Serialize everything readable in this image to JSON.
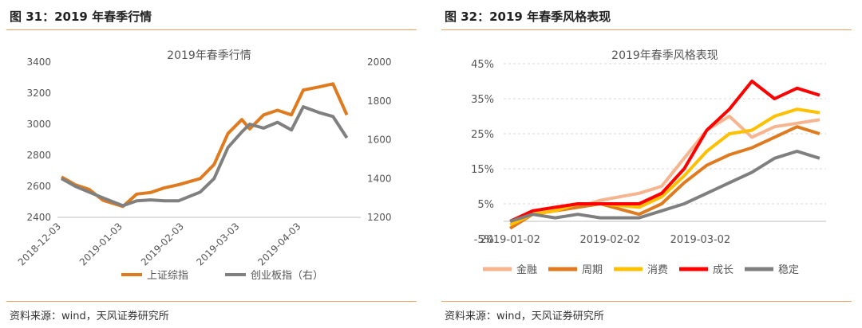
{
  "left_panel": {
    "figure_title": "图 31：2019 年春季行情",
    "source": "资料来源：wind，天风证券研究所"
  },
  "right_panel": {
    "figure_title": "图 32：2019 年春季风格表现",
    "source": "资料来源：wind，天风证券研究所"
  },
  "colors": {
    "shanghai": "#E07A1F",
    "chinext": "#808080",
    "jinrong": "#F6B48F",
    "zhouqi": "#E07A1F",
    "xiaofei": "#FFC000",
    "chengzhang": "#FF0000",
    "wending": "#7F7F7F",
    "rule": "#F0A060"
  },
  "chart_data": [
    {
      "type": "line",
      "title": "2019年春季行情",
      "x_ticks": [
        "2018-12-03",
        "2019-01-03",
        "2019-02-03",
        "2019-03-03",
        "2019-04-03"
      ],
      "y_left": {
        "range": [
          2400,
          3400
        ],
        "ticks": [
          2400,
          2600,
          2800,
          3000,
          3200,
          3400
        ]
      },
      "y_right": {
        "range": [
          1200,
          2000
        ],
        "ticks": [
          1200,
          1400,
          1600,
          1800,
          2000
        ]
      },
      "legend": [
        "上证综指",
        "创业板指（右）"
      ],
      "legend_position": "bottom",
      "series": [
        {
          "name": "上证综指",
          "axis": "left",
          "x": [
            "2018-12-03",
            "2018-12-10",
            "2018-12-17",
            "2018-12-24",
            "2019-01-03",
            "2019-01-10",
            "2019-01-17",
            "2019-01-24",
            "2019-01-31",
            "2019-02-11",
            "2019-02-18",
            "2019-02-25",
            "2019-03-04",
            "2019-03-08",
            "2019-03-15",
            "2019-03-22",
            "2019-03-29",
            "2019-04-04",
            "2019-04-12",
            "2019-04-19",
            "2019-04-26"
          ],
          "values": [
            2660,
            2610,
            2580,
            2510,
            2470,
            2550,
            2560,
            2590,
            2610,
            2650,
            2740,
            2940,
            3030,
            2970,
            3060,
            3090,
            3060,
            3220,
            3240,
            3260,
            3060
          ]
        },
        {
          "name": "创业板指（右）",
          "axis": "right",
          "x": [
            "2018-12-03",
            "2018-12-10",
            "2018-12-17",
            "2018-12-24",
            "2019-01-03",
            "2019-01-10",
            "2019-01-17",
            "2019-01-24",
            "2019-01-31",
            "2019-02-11",
            "2019-02-18",
            "2019-02-25",
            "2019-03-04",
            "2019-03-08",
            "2019-03-15",
            "2019-03-22",
            "2019-03-29",
            "2019-04-04",
            "2019-04-12",
            "2019-04-19",
            "2019-04-26"
          ],
          "values": [
            1400,
            1360,
            1330,
            1300,
            1260,
            1285,
            1290,
            1285,
            1285,
            1330,
            1400,
            1560,
            1640,
            1680,
            1660,
            1690,
            1650,
            1770,
            1740,
            1720,
            1610
          ]
        }
      ]
    },
    {
      "type": "line",
      "title": "2019年春季风格表现",
      "x_ticks": [
        "2019-01-02",
        "2019-02-02",
        "2019-03-02"
      ],
      "y": {
        "range": [
          -5,
          45
        ],
        "ticks": [
          "-5%",
          "5%",
          "15%",
          "25%",
          "35%",
          "45%"
        ]
      },
      "legend": [
        "金融",
        "周期",
        "消费",
        "成长",
        "稳定"
      ],
      "legend_position": "bottom",
      "series": [
        {
          "name": "金融",
          "x": [
            "2019-01-02",
            "2019-01-09",
            "2019-01-16",
            "2019-01-23",
            "2019-01-30",
            "2019-02-11",
            "2019-02-18",
            "2019-02-25",
            "2019-03-04",
            "2019-03-11",
            "2019-03-18",
            "2019-03-25",
            "2019-04-01",
            "2019-04-08"
          ],
          "values": [
            0,
            2,
            3,
            4,
            6,
            8,
            10,
            18,
            26,
            30,
            24,
            27,
            28,
            29
          ]
        },
        {
          "name": "周期",
          "x": [
            "2019-01-02",
            "2019-01-09",
            "2019-01-16",
            "2019-01-23",
            "2019-01-30",
            "2019-02-11",
            "2019-02-18",
            "2019-02-25",
            "2019-03-04",
            "2019-03-11",
            "2019-03-18",
            "2019-03-25",
            "2019-04-01",
            "2019-04-08"
          ],
          "values": [
            -2,
            2,
            3,
            4,
            5,
            2,
            5,
            11,
            16,
            19,
            21,
            24,
            27,
            25
          ]
        },
        {
          "name": "消费",
          "x": [
            "2019-01-02",
            "2019-01-09",
            "2019-01-16",
            "2019-01-23",
            "2019-01-30",
            "2019-02-11",
            "2019-02-18",
            "2019-02-25",
            "2019-03-04",
            "2019-03-11",
            "2019-03-18",
            "2019-03-25",
            "2019-04-01",
            "2019-04-08"
          ],
          "values": [
            -1,
            2,
            3,
            5,
            5,
            4,
            7,
            13,
            20,
            25,
            26,
            30,
            32,
            31
          ]
        },
        {
          "name": "成长",
          "x": [
            "2019-01-02",
            "2019-01-09",
            "2019-01-16",
            "2019-01-23",
            "2019-01-30",
            "2019-02-11",
            "2019-02-18",
            "2019-02-25",
            "2019-03-04",
            "2019-03-11",
            "2019-03-18",
            "2019-03-25",
            "2019-04-01",
            "2019-04-08"
          ],
          "values": [
            0,
            3,
            4,
            5,
            5,
            5,
            8,
            15,
            26,
            32,
            40,
            35,
            38,
            36
          ]
        },
        {
          "name": "稳定",
          "x": [
            "2019-01-02",
            "2019-01-09",
            "2019-01-16",
            "2019-01-23",
            "2019-01-30",
            "2019-02-11",
            "2019-02-18",
            "2019-02-25",
            "2019-03-04",
            "2019-03-11",
            "2019-03-18",
            "2019-03-25",
            "2019-04-01",
            "2019-04-08"
          ],
          "values": [
            0,
            2,
            1,
            2,
            1,
            1,
            3,
            5,
            8,
            11,
            14,
            18,
            20,
            18
          ]
        }
      ]
    }
  ]
}
